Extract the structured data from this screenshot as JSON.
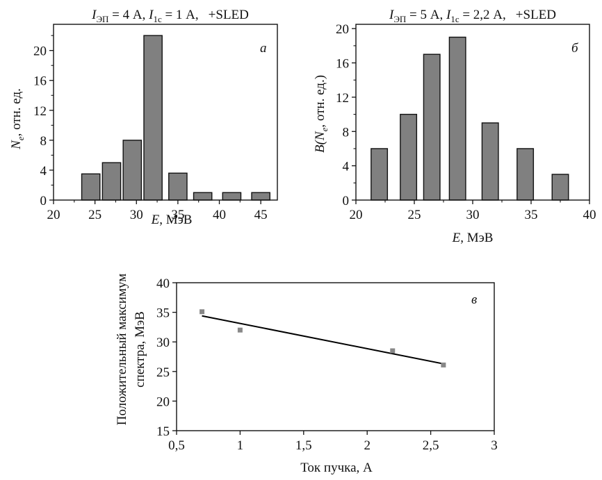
{
  "chart_data": [
    {
      "type": "bar",
      "panel_label": "а",
      "title": {
        "current1_main": "I",
        "current1_sub": "ЭП",
        "current1_value": " = 4 А, ",
        "current2_main": "I",
        "current2_sub": "1c",
        "current2_value": " = 1 А,",
        "mode": "+SLED"
      },
      "xlabel": {
        "var": "E",
        "unit": ", МэВ"
      },
      "ylabel": {
        "var": "N",
        "sub": "e",
        "unit": ", отн. ед."
      },
      "xlim": [
        20,
        47
      ],
      "ylim": [
        0,
        23.5
      ],
      "xticks": [
        20,
        25,
        30,
        35,
        40,
        45
      ],
      "yticks": [
        0,
        4,
        8,
        12,
        16,
        20
      ],
      "bar_width": 2.2,
      "bar_color": "#808080",
      "x": [
        24.5,
        27,
        29.5,
        32,
        35,
        38,
        41.5,
        45
      ],
      "values": [
        3.5,
        5,
        8,
        22,
        3.6,
        1,
        1,
        1
      ]
    },
    {
      "type": "bar",
      "panel_label": "б",
      "title": {
        "current1_main": "I",
        "current1_sub": "ЭП",
        "current1_value": " = 5 А, ",
        "current2_main": "I",
        "current2_sub": "1c",
        "current2_value": " = 2,2 А,",
        "mode": "+SLED"
      },
      "xlabel": {
        "var": "E",
        "unit": ", МэВ"
      },
      "ylabel": {
        "pre": "B(",
        "var": "N",
        "sub": "e",
        "unit": ", отн. ед.)"
      },
      "xlim": [
        20,
        40
      ],
      "ylim": [
        0,
        20.5
      ],
      "xticks": [
        20,
        25,
        30,
        35,
        40
      ],
      "yticks": [
        0,
        4,
        8,
        12,
        16,
        20
      ],
      "bar_width": 1.4,
      "bar_color": "#808080",
      "x": [
        22,
        24.5,
        26.5,
        28.7,
        31.5,
        34.5,
        37.5
      ],
      "values": [
        6,
        10,
        17,
        19,
        9,
        6,
        3
      ]
    },
    {
      "type": "scatter",
      "panel_label": "в",
      "xlabel": "Ток пучка, А",
      "ylabel_line1": "Положительный максимум",
      "ylabel_line2": "спектра, МэВ",
      "xlim": [
        0.5,
        3
      ],
      "ylim": [
        15,
        40
      ],
      "xticks": [
        "0,5",
        "1",
        "1,5",
        "2",
        "2,5",
        "3"
      ],
      "yticks": [
        15,
        20,
        25,
        30,
        35,
        40
      ],
      "marker_color": "#888888",
      "points": {
        "x": [
          0.7,
          1.0,
          2.2,
          2.6
        ],
        "y": [
          35.1,
          32.0,
          28.5,
          26.1
        ]
      },
      "fit_line": {
        "x": [
          0.7,
          2.6
        ],
        "y": [
          34.4,
          26.3
        ]
      }
    }
  ]
}
